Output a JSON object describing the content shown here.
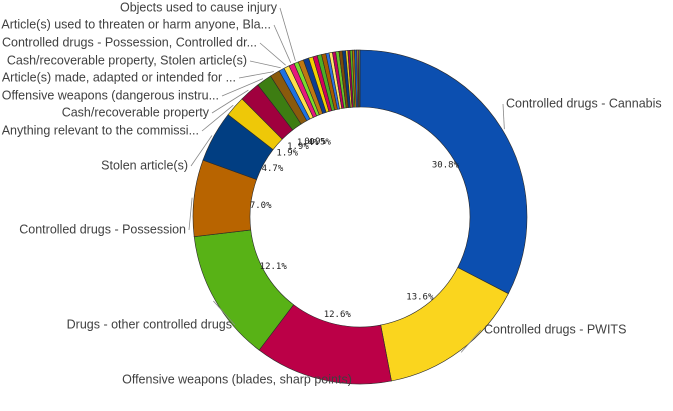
{
  "chart_data": {
    "type": "donut",
    "categories": [
      "Controlled drugs - Cannabis",
      "Controlled drugs - PWITS",
      "Offensive weapons (blades, sharp points)",
      "Drugs - other controlled drugs",
      "Controlled drugs - Possession",
      "Stolen article(s)",
      "Anything relevant to the commissi...",
      "Cash/recoverable property",
      "Offensive weapons (dangerous instru...",
      "Article(s) made, adapted or intended for ...",
      "Cash/recoverable property, Stolen article(s)",
      "Controlled drugs - Possession, Controlled dr...",
      "Article(s) used to threaten or harm anyone, Bla...",
      "Objects used to cause injury",
      null,
      null,
      null,
      null,
      null,
      null,
      null,
      null,
      null,
      null,
      null,
      null,
      null,
      null,
      null,
      null,
      null,
      null,
      null,
      null
    ],
    "values": [
      30.8,
      13.6,
      12.6,
      12.1,
      7.0,
      4.7,
      1.9,
      1.9,
      1.4,
      0.9,
      0.5,
      0.5,
      0.5,
      0.4,
      0.5,
      0.5,
      0.4,
      0.4,
      0.4,
      0.4,
      0.3,
      0.3,
      0.3,
      0.3,
      0.3,
      0.3,
      0.2,
      0.2,
      0.2,
      0.2,
      0.2,
      0.1,
      0.1,
      0.1
    ],
    "value_labels": [
      "30.8%",
      "13.6%",
      "12.6%",
      "12.1%",
      "7.0%",
      "4.7%",
      "1.9%",
      "1.9%",
      "1.4%",
      "0.9%",
      "0.5%",
      null,
      null,
      null,
      null,
      null,
      null,
      null,
      null,
      null,
      null,
      null,
      null,
      null,
      null,
      null,
      null,
      null,
      null,
      null,
      null,
      null,
      null,
      null
    ],
    "colors": [
      "#0c4fb0",
      "#fad51e",
      "#bb0047",
      "#58b216",
      "#b86400",
      "#013e82",
      "#eec808",
      "#a0003e",
      "#3d7d12",
      "#8a5a0c",
      "#1f72e3",
      "#ffe04a",
      "#e8177d",
      "#7bdc2c",
      "#c07810",
      "#0d3c92",
      "#f2d000",
      "#d4005a",
      "#4caf24",
      "#a85c00",
      "#2d6fe0",
      "#ffe56a",
      "#c20062",
      "#69c52a",
      "#7e4a08",
      "#0a3a7a",
      "#f5cd20",
      "#a60050",
      "#5fb51c",
      "#b46c0a",
      "#1a5ac0",
      "#fada3a",
      "#d41266",
      "#7ad03a"
    ]
  }
}
